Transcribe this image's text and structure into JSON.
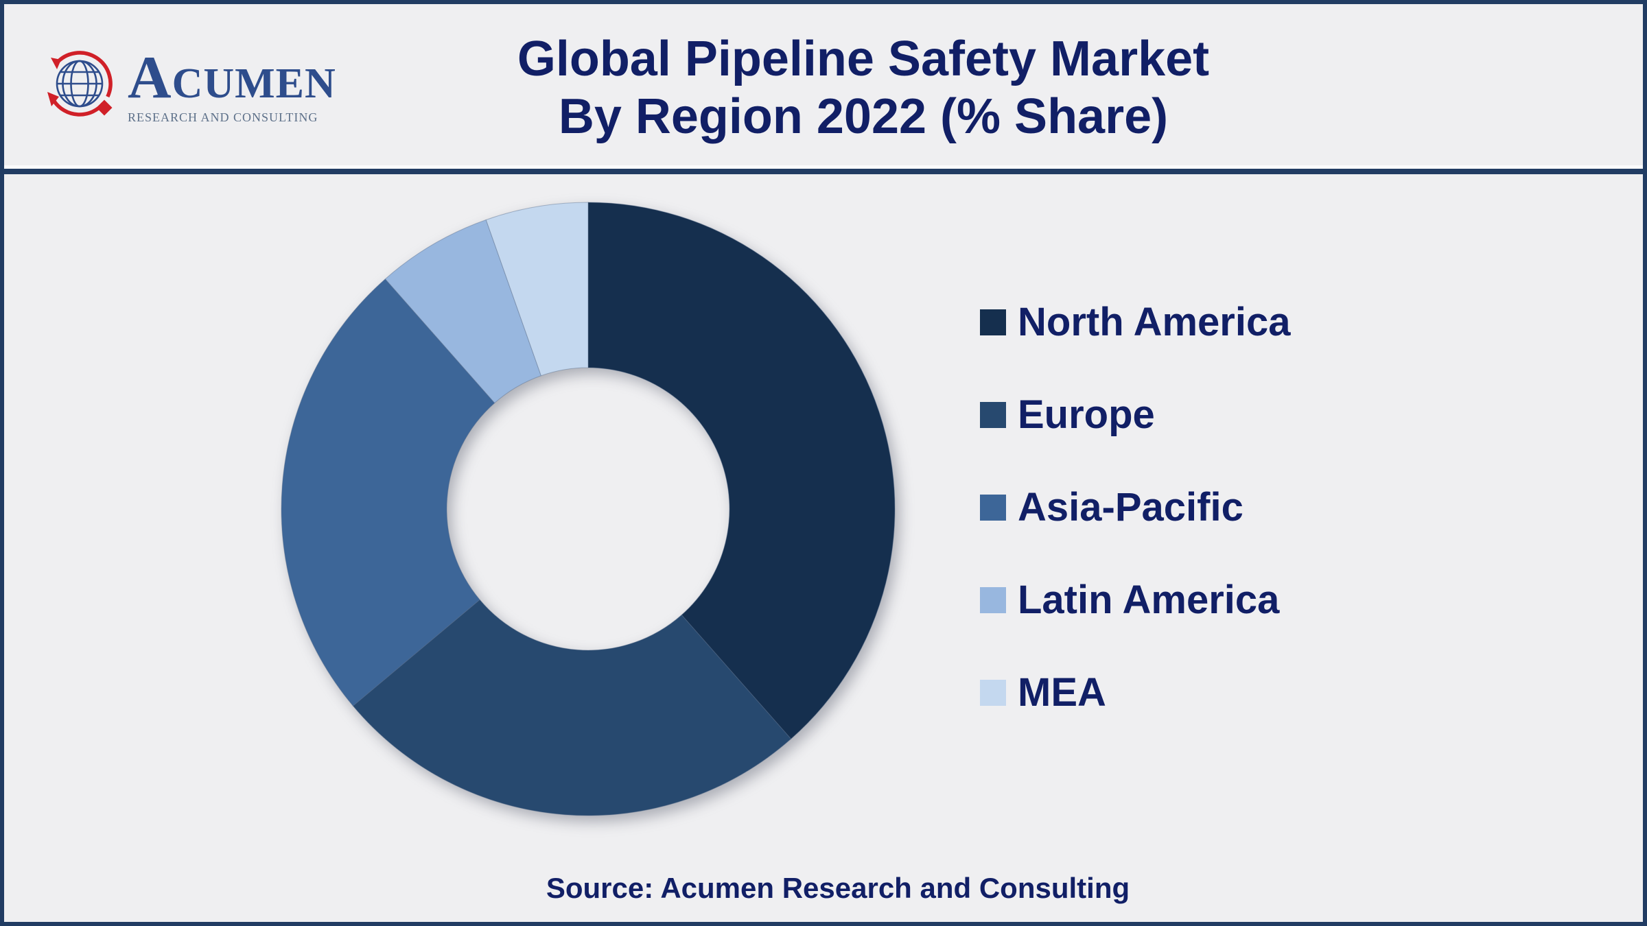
{
  "style": {
    "background": "#efeff1",
    "frame_color": "#213c63",
    "title_color": "#111f66",
    "legend_text_color": "#111f66",
    "source_text_color": "#111f66",
    "logo_brand_color": "#2e4d8c",
    "logo_tagline_color": "#5d7089",
    "logo_accent_red": "#d02028"
  },
  "header": {
    "logo": {
      "brand": "ACUMEN",
      "tagline": "RESEARCH AND CONSULTING",
      "icon": "globe-with-red-orbit-arrows-and-diamond"
    },
    "title_lines": [
      "Global Pipeline Safety Market",
      "By Region 2022 (% Share)"
    ]
  },
  "chart_data": {
    "type": "pie",
    "subtype": "donut",
    "title": "Global Pipeline Safety Market By Region 2022 (% Share)",
    "unit": "% share",
    "direction": "clockwise",
    "start_angle_deg": 0,
    "inner_radius_ratio": 0.46,
    "legend_position": "right",
    "categories": [
      "North America",
      "Europe",
      "Asia-Pacific",
      "Latin America",
      "MEA"
    ],
    "values": [
      38.5,
      25.4,
      24.6,
      6.1,
      5.4
    ],
    "colors": [
      "#152f4e",
      "#27496f",
      "#3d6698",
      "#98b7df",
      "#c4d8ef"
    ]
  },
  "footer": {
    "source": "Source: Acumen Research and Consulting"
  }
}
